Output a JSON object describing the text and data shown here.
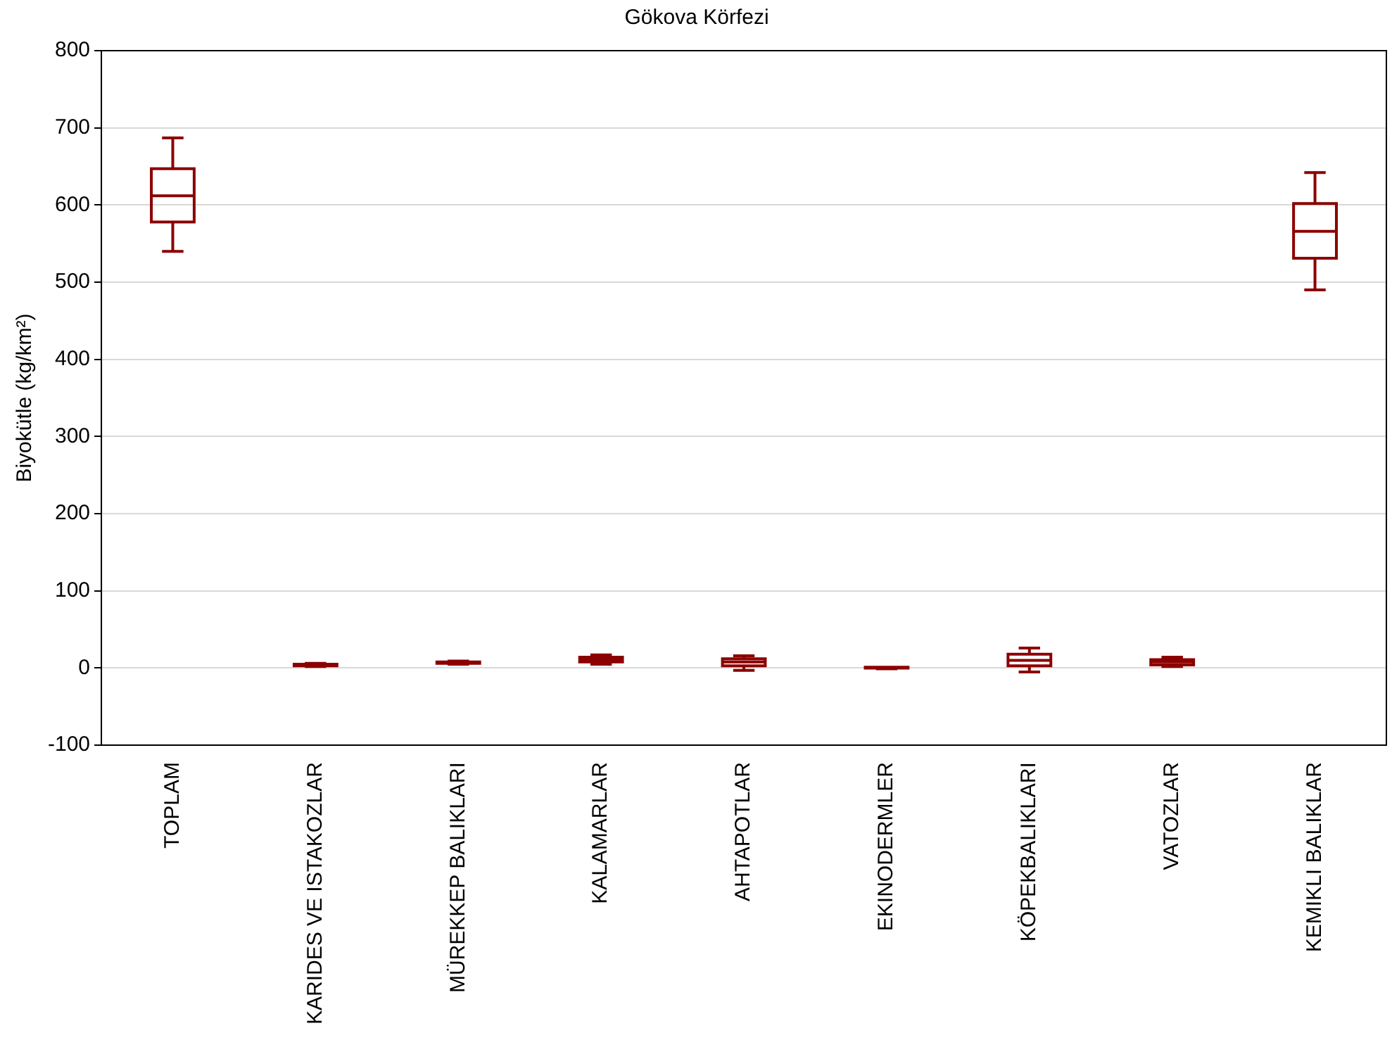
{
  "chart_data": {
    "type": "box",
    "title": "Gökova Körfezi",
    "ylabel": "Biyokütle (kg/km²)",
    "categories": [
      "TOPLAM",
      "KARIDES VE ISTAKOZLAR",
      "MÜREKKEP BALIKLARI",
      "KALAMARLAR",
      "AHTAPOTLAR",
      "EKINODERMLER",
      "KÖPEKBALIKLARI",
      "VATOZLAR",
      "KEMIKLI BALIKLAR"
    ],
    "boxes": [
      {
        "low": 540,
        "q1": 578,
        "median": 612,
        "q3": 647,
        "high": 687
      },
      {
        "low": 2,
        "q1": 3,
        "median": 4,
        "q3": 5,
        "high": 6
      },
      {
        "low": 5,
        "q1": 6,
        "median": 7,
        "q3": 8,
        "high": 9
      },
      {
        "low": 5,
        "q1": 8,
        "median": 11,
        "q3": 14,
        "high": 17
      },
      {
        "low": -3,
        "q1": 3,
        "median": 8,
        "q3": 12,
        "high": 16
      },
      {
        "low": -1,
        "q1": 0,
        "median": 0,
        "q3": 1,
        "high": 1
      },
      {
        "low": -5,
        "q1": 3,
        "median": 10,
        "q3": 18,
        "high": 26
      },
      {
        "low": 2,
        "q1": 4,
        "median": 8,
        "q3": 11,
        "high": 14
      },
      {
        "low": 490,
        "q1": 531,
        "median": 566,
        "q3": 602,
        "high": 642
      }
    ],
    "color": "#8b0000",
    "ylim": [
      -100,
      800
    ],
    "yticks": [
      -100,
      0,
      100,
      200,
      300,
      400,
      500,
      600,
      700,
      800
    ],
    "grid": "y"
  }
}
